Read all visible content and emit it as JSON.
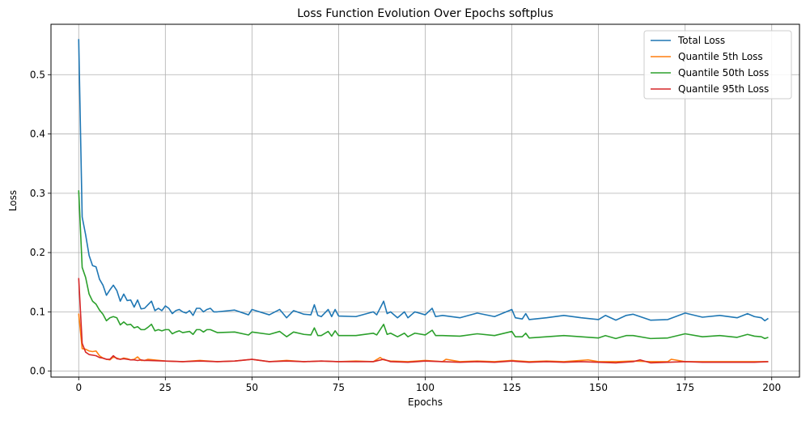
{
  "chart_data": {
    "type": "line",
    "title": "Loss Function Evolution Over Epochs softplus",
    "xlabel": "Epochs",
    "ylabel": "Loss",
    "xlim": [
      -8,
      208
    ],
    "ylim": [
      -0.01,
      0.585
    ],
    "xticks": [
      0,
      25,
      50,
      75,
      100,
      125,
      150,
      175,
      200
    ],
    "yticks": [
      0.0,
      0.1,
      0.2,
      0.3,
      0.4,
      0.5
    ],
    "ytick_labels": [
      "0.0",
      "0.1",
      "0.2",
      "0.3",
      "0.4",
      "0.5"
    ],
    "grid": true,
    "legend_position": "top-right",
    "x": {
      "start": 0,
      "end": 199,
      "step": 1
    },
    "series": [
      {
        "name": "Total Loss",
        "color": "#1f77b4",
        "keypoints": [
          [
            0,
            0.56
          ],
          [
            1,
            0.26
          ],
          [
            2,
            0.23
          ],
          [
            3,
            0.195
          ],
          [
            4,
            0.178
          ],
          [
            5,
            0.176
          ],
          [
            6,
            0.155
          ],
          [
            7,
            0.145
          ],
          [
            8,
            0.128
          ],
          [
            9,
            0.137
          ],
          [
            10,
            0.145
          ],
          [
            11,
            0.136
          ],
          [
            12,
            0.118
          ],
          [
            13,
            0.13
          ],
          [
            14,
            0.119
          ],
          [
            15,
            0.12
          ],
          [
            16,
            0.108
          ],
          [
            17,
            0.12
          ],
          [
            18,
            0.105
          ],
          [
            19,
            0.106
          ],
          [
            20,
            0.112
          ],
          [
            21,
            0.118
          ],
          [
            22,
            0.102
          ],
          [
            23,
            0.106
          ],
          [
            24,
            0.102
          ],
          [
            25,
            0.11
          ],
          [
            26,
            0.106
          ],
          [
            27,
            0.097
          ],
          [
            28,
            0.102
          ],
          [
            29,
            0.104
          ],
          [
            30,
            0.1
          ],
          [
            31,
            0.098
          ],
          [
            32,
            0.102
          ],
          [
            33,
            0.094
          ],
          [
            34,
            0.106
          ],
          [
            35,
            0.106
          ],
          [
            36,
            0.1
          ],
          [
            37,
            0.104
          ],
          [
            38,
            0.106
          ],
          [
            39,
            0.1
          ],
          [
            40,
            0.1
          ],
          [
            45,
            0.103
          ],
          [
            49,
            0.095
          ],
          [
            50,
            0.104
          ],
          [
            55,
            0.095
          ],
          [
            58,
            0.104
          ],
          [
            60,
            0.09
          ],
          [
            62,
            0.102
          ],
          [
            65,
            0.096
          ],
          [
            67,
            0.095
          ],
          [
            68,
            0.112
          ],
          [
            69,
            0.094
          ],
          [
            70,
            0.092
          ],
          [
            72,
            0.104
          ],
          [
            73,
            0.092
          ],
          [
            74,
            0.104
          ],
          [
            75,
            0.093
          ],
          [
            80,
            0.092
          ],
          [
            85,
            0.1
          ],
          [
            86,
            0.095
          ],
          [
            88,
            0.118
          ],
          [
            89,
            0.097
          ],
          [
            90,
            0.1
          ],
          [
            92,
            0.09
          ],
          [
            94,
            0.1
          ],
          [
            95,
            0.09
          ],
          [
            97,
            0.1
          ],
          [
            100,
            0.095
          ],
          [
            102,
            0.106
          ],
          [
            103,
            0.092
          ],
          [
            105,
            0.094
          ],
          [
            110,
            0.09
          ],
          [
            115,
            0.098
          ],
          [
            120,
            0.092
          ],
          [
            125,
            0.104
          ],
          [
            126,
            0.09
          ],
          [
            128,
            0.088
          ],
          [
            129,
            0.097
          ],
          [
            130,
            0.087
          ],
          [
            135,
            0.09
          ],
          [
            140,
            0.094
          ],
          [
            145,
            0.09
          ],
          [
            150,
            0.087
          ],
          [
            152,
            0.094
          ],
          [
            155,
            0.086
          ],
          [
            158,
            0.094
          ],
          [
            160,
            0.096
          ],
          [
            165,
            0.086
          ],
          [
            170,
            0.087
          ],
          [
            175,
            0.098
          ],
          [
            180,
            0.091
          ],
          [
            185,
            0.094
          ],
          [
            190,
            0.09
          ],
          [
            193,
            0.097
          ],
          [
            195,
            0.092
          ],
          [
            197,
            0.09
          ],
          [
            198,
            0.085
          ],
          [
            199,
            0.089
          ]
        ]
      },
      {
        "name": "Quantile 5th Loss",
        "color": "#ff7f0e",
        "keypoints": [
          [
            0,
            0.097
          ],
          [
            1,
            0.038
          ],
          [
            2,
            0.037
          ],
          [
            3,
            0.034
          ],
          [
            4,
            0.033
          ],
          [
            5,
            0.034
          ],
          [
            6,
            0.026
          ],
          [
            7,
            0.022
          ],
          [
            8,
            0.02
          ],
          [
            9,
            0.019
          ],
          [
            10,
            0.024
          ],
          [
            11,
            0.022
          ],
          [
            12,
            0.02
          ],
          [
            13,
            0.022
          ],
          [
            14,
            0.021
          ],
          [
            15,
            0.019
          ],
          [
            16,
            0.02
          ],
          [
            17,
            0.024
          ],
          [
            18,
            0.018
          ],
          [
            19,
            0.018
          ],
          [
            20,
            0.02
          ],
          [
            25,
            0.017
          ],
          [
            30,
            0.016
          ],
          [
            35,
            0.018
          ],
          [
            40,
            0.016
          ],
          [
            45,
            0.017
          ],
          [
            50,
            0.02
          ],
          [
            55,
            0.016
          ],
          [
            60,
            0.018
          ],
          [
            65,
            0.016
          ],
          [
            70,
            0.017
          ],
          [
            75,
            0.016
          ],
          [
            80,
            0.017
          ],
          [
            85,
            0.016
          ],
          [
            87,
            0.023
          ],
          [
            88,
            0.019
          ],
          [
            90,
            0.017
          ],
          [
            95,
            0.016
          ],
          [
            100,
            0.018
          ],
          [
            105,
            0.016
          ],
          [
            106,
            0.02
          ],
          [
            110,
            0.016
          ],
          [
            115,
            0.017
          ],
          [
            120,
            0.016
          ],
          [
            125,
            0.018
          ],
          [
            130,
            0.016
          ],
          [
            135,
            0.017
          ],
          [
            140,
            0.016
          ],
          [
            147,
            0.019
          ],
          [
            150,
            0.016
          ],
          [
            155,
            0.016
          ],
          [
            160,
            0.017
          ],
          [
            165,
            0.016
          ],
          [
            170,
            0.016
          ],
          [
            171,
            0.02
          ],
          [
            175,
            0.016
          ],
          [
            180,
            0.016
          ],
          [
            185,
            0.016
          ],
          [
            190,
            0.016
          ],
          [
            195,
            0.016
          ],
          [
            199,
            0.016
          ]
        ]
      },
      {
        "name": "Quantile 50th Loss",
        "color": "#2ca02c",
        "keypoints": [
          [
            0,
            0.305
          ],
          [
            1,
            0.175
          ],
          [
            2,
            0.158
          ],
          [
            3,
            0.13
          ],
          [
            4,
            0.118
          ],
          [
            5,
            0.113
          ],
          [
            6,
            0.103
          ],
          [
            7,
            0.096
          ],
          [
            8,
            0.085
          ],
          [
            9,
            0.09
          ],
          [
            10,
            0.092
          ],
          [
            11,
            0.09
          ],
          [
            12,
            0.078
          ],
          [
            13,
            0.083
          ],
          [
            14,
            0.078
          ],
          [
            15,
            0.079
          ],
          [
            16,
            0.073
          ],
          [
            17,
            0.075
          ],
          [
            18,
            0.07
          ],
          [
            19,
            0.07
          ],
          [
            20,
            0.074
          ],
          [
            21,
            0.079
          ],
          [
            22,
            0.068
          ],
          [
            23,
            0.07
          ],
          [
            24,
            0.068
          ],
          [
            25,
            0.07
          ],
          [
            26,
            0.07
          ],
          [
            27,
            0.063
          ],
          [
            28,
            0.066
          ],
          [
            29,
            0.068
          ],
          [
            30,
            0.065
          ],
          [
            32,
            0.067
          ],
          [
            33,
            0.062
          ],
          [
            34,
            0.07
          ],
          [
            35,
            0.07
          ],
          [
            36,
            0.066
          ],
          [
            37,
            0.07
          ],
          [
            38,
            0.07
          ],
          [
            40,
            0.065
          ],
          [
            45,
            0.066
          ],
          [
            49,
            0.061
          ],
          [
            50,
            0.066
          ],
          [
            55,
            0.062
          ],
          [
            58,
            0.067
          ],
          [
            60,
            0.058
          ],
          [
            62,
            0.066
          ],
          [
            65,
            0.062
          ],
          [
            67,
            0.061
          ],
          [
            68,
            0.073
          ],
          [
            69,
            0.06
          ],
          [
            70,
            0.06
          ],
          [
            72,
            0.067
          ],
          [
            73,
            0.059
          ],
          [
            74,
            0.068
          ],
          [
            75,
            0.06
          ],
          [
            80,
            0.06
          ],
          [
            85,
            0.064
          ],
          [
            86,
            0.061
          ],
          [
            88,
            0.079
          ],
          [
            89,
            0.062
          ],
          [
            90,
            0.064
          ],
          [
            92,
            0.058
          ],
          [
            94,
            0.064
          ],
          [
            95,
            0.058
          ],
          [
            97,
            0.064
          ],
          [
            100,
            0.061
          ],
          [
            102,
            0.069
          ],
          [
            103,
            0.06
          ],
          [
            105,
            0.06
          ],
          [
            110,
            0.059
          ],
          [
            115,
            0.063
          ],
          [
            120,
            0.06
          ],
          [
            125,
            0.067
          ],
          [
            126,
            0.058
          ],
          [
            128,
            0.058
          ],
          [
            129,
            0.064
          ],
          [
            130,
            0.056
          ],
          [
            135,
            0.058
          ],
          [
            140,
            0.06
          ],
          [
            145,
            0.058
          ],
          [
            150,
            0.056
          ],
          [
            152,
            0.06
          ],
          [
            155,
            0.055
          ],
          [
            158,
            0.06
          ],
          [
            160,
            0.06
          ],
          [
            165,
            0.055
          ],
          [
            170,
            0.056
          ],
          [
            175,
            0.063
          ],
          [
            180,
            0.058
          ],
          [
            185,
            0.06
          ],
          [
            190,
            0.057
          ],
          [
            193,
            0.062
          ],
          [
            195,
            0.059
          ],
          [
            197,
            0.058
          ],
          [
            198,
            0.055
          ],
          [
            199,
            0.057
          ]
        ]
      },
      {
        "name": "Quantile 95th Loss",
        "color": "#d62728",
        "keypoints": [
          [
            0,
            0.157
          ],
          [
            1,
            0.047
          ],
          [
            2,
            0.032
          ],
          [
            3,
            0.028
          ],
          [
            4,
            0.027
          ],
          [
            5,
            0.026
          ],
          [
            6,
            0.023
          ],
          [
            7,
            0.022
          ],
          [
            8,
            0.02
          ],
          [
            9,
            0.02
          ],
          [
            10,
            0.026
          ],
          [
            11,
            0.021
          ],
          [
            12,
            0.02
          ],
          [
            13,
            0.021
          ],
          [
            14,
            0.02
          ],
          [
            15,
            0.019
          ],
          [
            16,
            0.019
          ],
          [
            17,
            0.018
          ],
          [
            18,
            0.019
          ],
          [
            19,
            0.018
          ],
          [
            20,
            0.018
          ],
          [
            25,
            0.017
          ],
          [
            30,
            0.016
          ],
          [
            35,
            0.017
          ],
          [
            40,
            0.016
          ],
          [
            45,
            0.017
          ],
          [
            50,
            0.02
          ],
          [
            55,
            0.016
          ],
          [
            60,
            0.017
          ],
          [
            65,
            0.016
          ],
          [
            70,
            0.017
          ],
          [
            75,
            0.016
          ],
          [
            80,
            0.016
          ],
          [
            85,
            0.016
          ],
          [
            88,
            0.02
          ],
          [
            90,
            0.016
          ],
          [
            95,
            0.015
          ],
          [
            100,
            0.017
          ],
          [
            105,
            0.016
          ],
          [
            110,
            0.015
          ],
          [
            115,
            0.016
          ],
          [
            120,
            0.015
          ],
          [
            125,
            0.017
          ],
          [
            130,
            0.015
          ],
          [
            135,
            0.016
          ],
          [
            140,
            0.015
          ],
          [
            145,
            0.016
          ],
          [
            150,
            0.015
          ],
          [
            155,
            0.014
          ],
          [
            160,
            0.016
          ],
          [
            162,
            0.019
          ],
          [
            165,
            0.014
          ],
          [
            170,
            0.015
          ],
          [
            175,
            0.016
          ],
          [
            180,
            0.015
          ],
          [
            185,
            0.015
          ],
          [
            190,
            0.015
          ],
          [
            195,
            0.015
          ],
          [
            199,
            0.016
          ]
        ]
      }
    ]
  }
}
